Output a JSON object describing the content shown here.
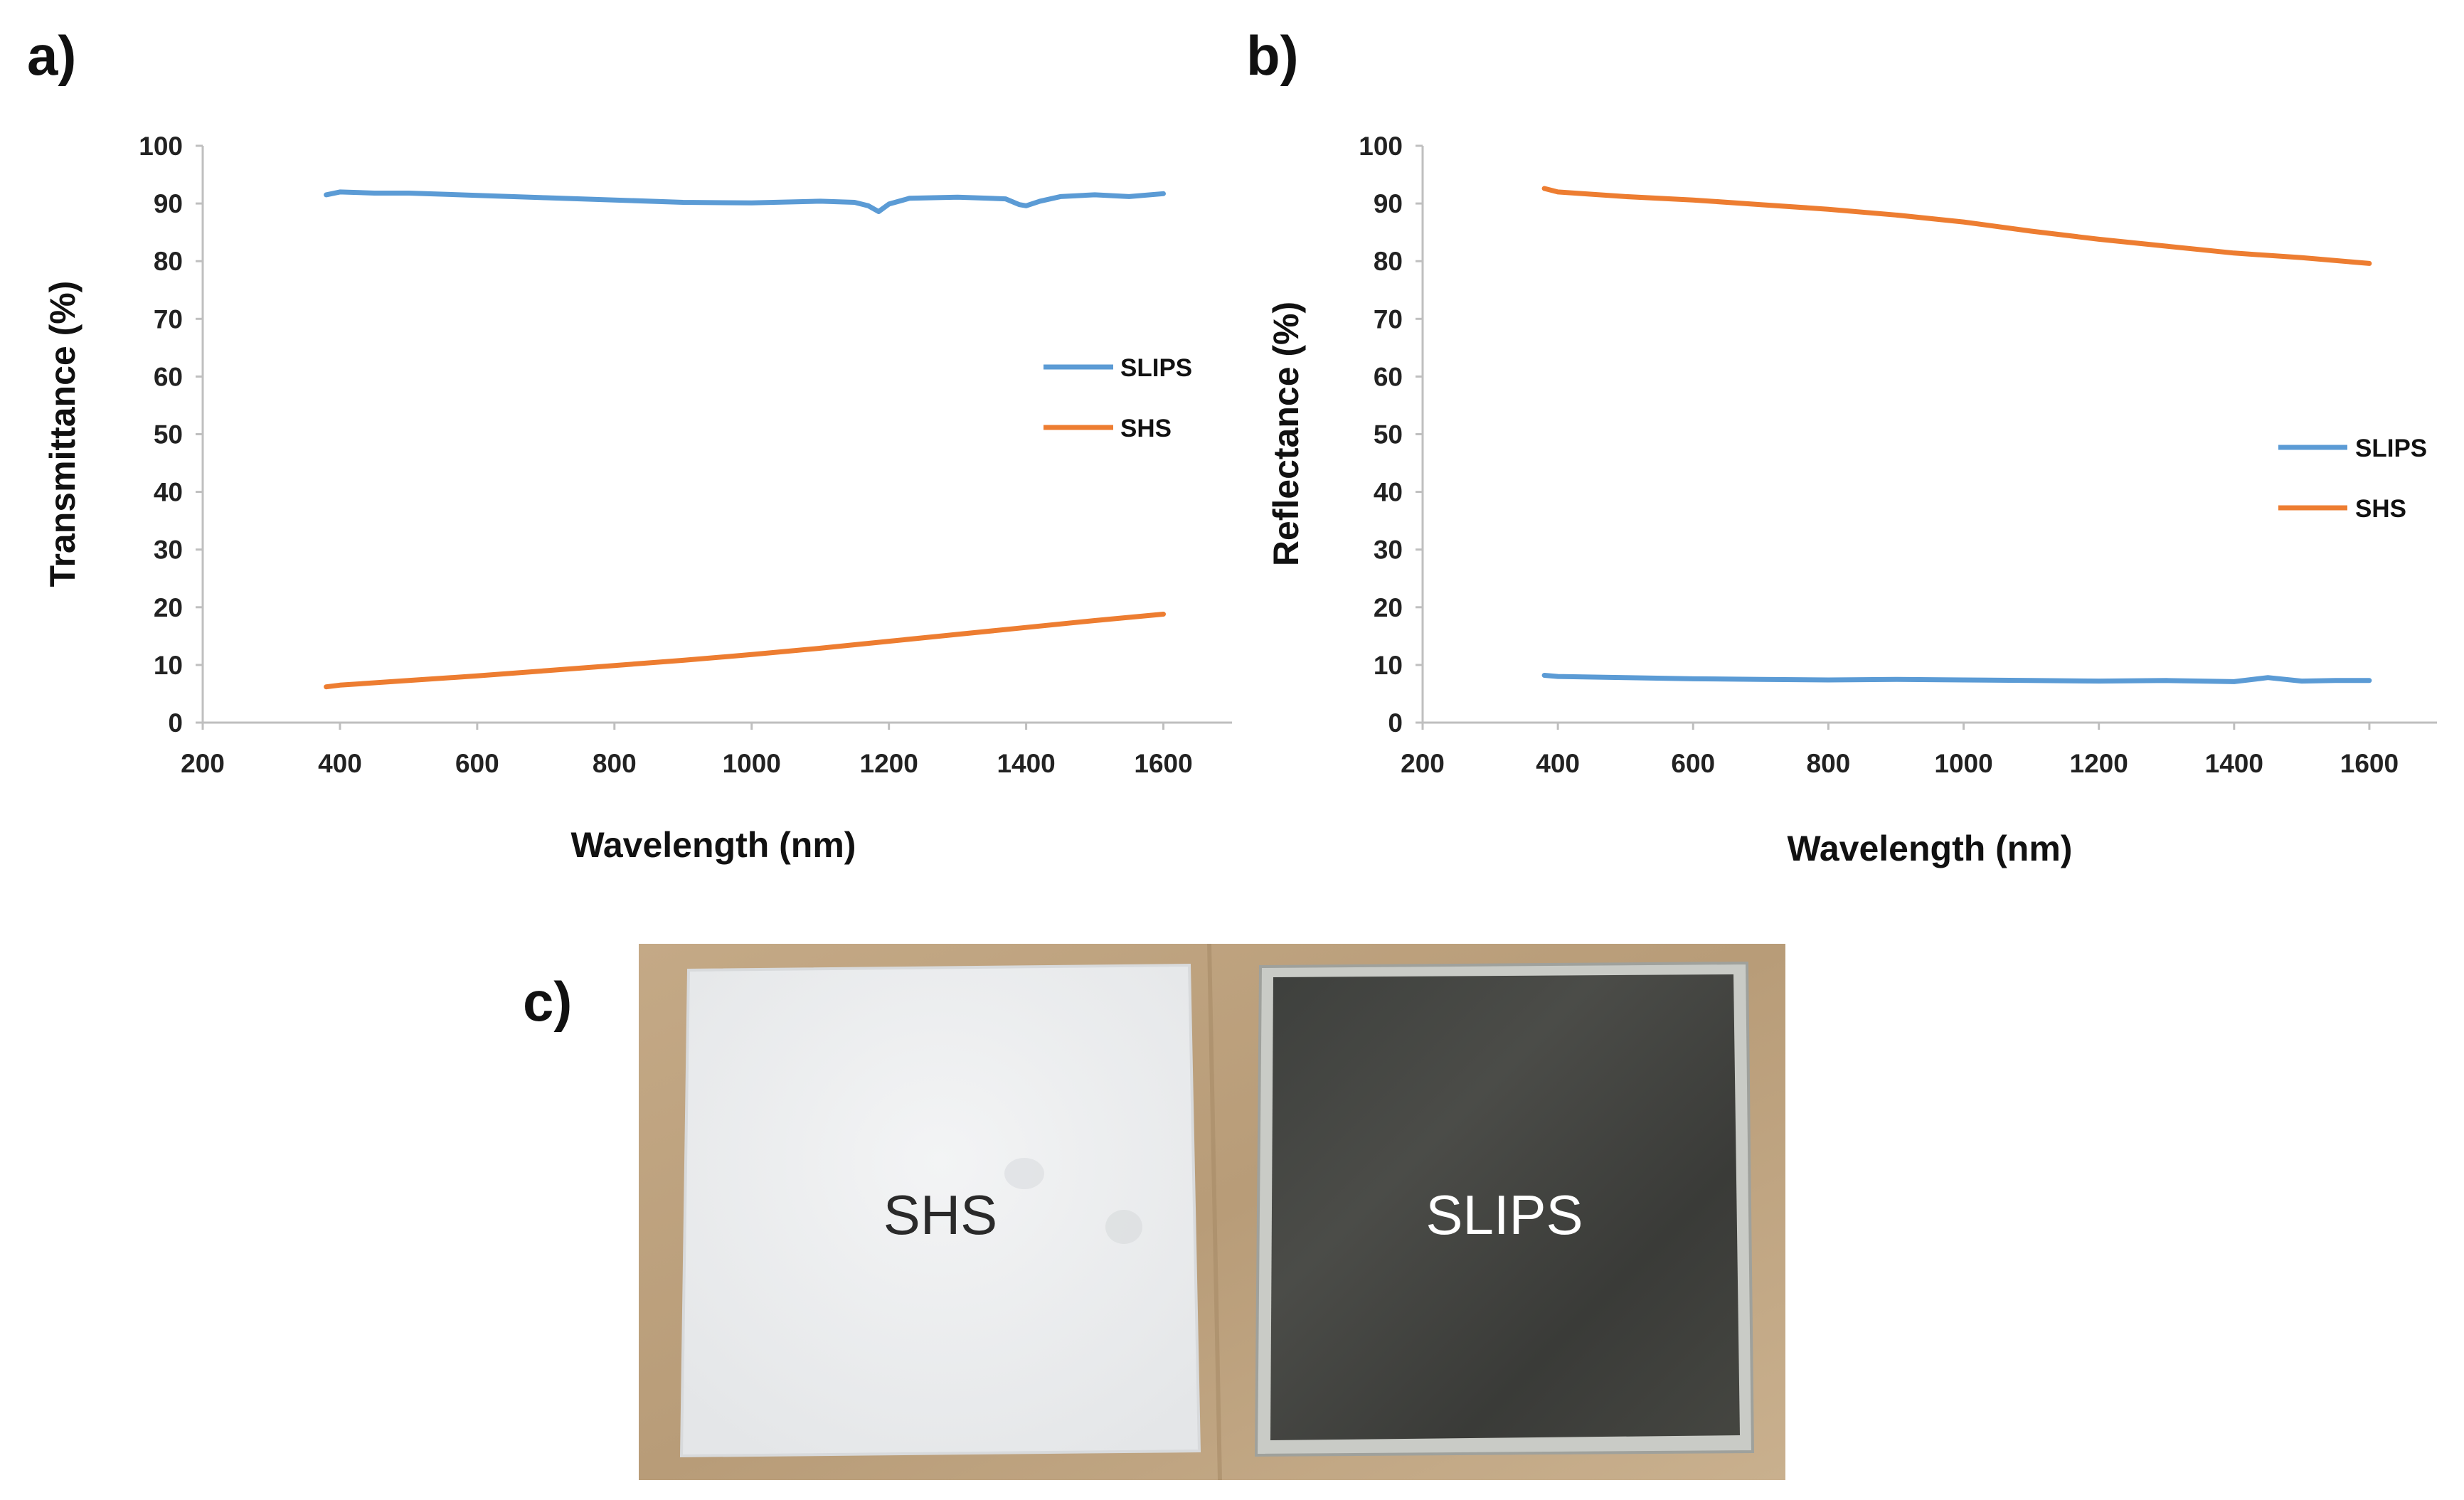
{
  "panels": {
    "a": "a)",
    "b": "b)",
    "c": "c)"
  },
  "colors": {
    "SLIPS": "#5b9bd5",
    "SHS": "#ed7d31"
  },
  "chart_data": [
    {
      "id": "a",
      "type": "line",
      "xlabel": "Wavelength (nm)",
      "ylabel": "Transmittance (%)",
      "xlim": [
        200,
        1700
      ],
      "ylim": [
        0,
        100
      ],
      "xticks": [
        200,
        400,
        600,
        800,
        1000,
        1200,
        1400,
        1600
      ],
      "yticks": [
        0,
        10,
        20,
        30,
        40,
        50,
        60,
        70,
        80,
        90,
        100
      ],
      "grid": false,
      "legend_position": "right",
      "series": [
        {
          "name": "SLIPS",
          "x": [
            380,
            400,
            450,
            500,
            600,
            700,
            800,
            900,
            1000,
            1100,
            1150,
            1170,
            1185,
            1200,
            1230,
            1300,
            1370,
            1390,
            1400,
            1420,
            1450,
            1500,
            1550,
            1600
          ],
          "y": [
            91.5,
            92.0,
            91.8,
            91.8,
            91.4,
            91.0,
            90.6,
            90.2,
            90.1,
            90.4,
            90.2,
            89.6,
            88.6,
            89.9,
            90.9,
            91.1,
            90.8,
            89.8,
            89.6,
            90.4,
            91.2,
            91.5,
            91.2,
            91.7
          ]
        },
        {
          "name": "SHS",
          "x": [
            380,
            400,
            500,
            600,
            700,
            800,
            900,
            1000,
            1100,
            1200,
            1300,
            1400,
            1500,
            1600
          ],
          "y": [
            6.2,
            6.5,
            7.3,
            8.1,
            9.0,
            9.9,
            10.8,
            11.8,
            12.9,
            14.1,
            15.3,
            16.5,
            17.7,
            18.8
          ]
        }
      ]
    },
    {
      "id": "b",
      "type": "line",
      "xlabel": "Wavelength (nm)",
      "ylabel": "Reflectance (%)",
      "xlim": [
        200,
        1700
      ],
      "ylim": [
        0,
        100
      ],
      "xticks": [
        200,
        400,
        600,
        800,
        1000,
        1200,
        1400,
        1600
      ],
      "yticks": [
        0,
        10,
        20,
        30,
        40,
        50,
        60,
        70,
        80,
        90,
        100
      ],
      "grid": false,
      "legend_position": "right",
      "series": [
        {
          "name": "SLIPS",
          "x": [
            380,
            400,
            500,
            600,
            700,
            800,
            900,
            1000,
            1100,
            1200,
            1300,
            1400,
            1450,
            1500,
            1550,
            1600
          ],
          "y": [
            8.2,
            8.0,
            7.8,
            7.6,
            7.5,
            7.4,
            7.5,
            7.4,
            7.3,
            7.2,
            7.3,
            7.1,
            7.8,
            7.2,
            7.3,
            7.3
          ]
        },
        {
          "name": "SHS",
          "x": [
            380,
            400,
            500,
            600,
            700,
            800,
            900,
            1000,
            1100,
            1200,
            1300,
            1400,
            1500,
            1600
          ],
          "y": [
            92.6,
            92.0,
            91.2,
            90.6,
            89.8,
            89.0,
            88.0,
            86.8,
            85.2,
            83.8,
            82.6,
            81.4,
            80.6,
            79.6
          ]
        }
      ]
    }
  ],
  "photo": {
    "left_label": "SHS",
    "right_label": "SLIPS"
  }
}
